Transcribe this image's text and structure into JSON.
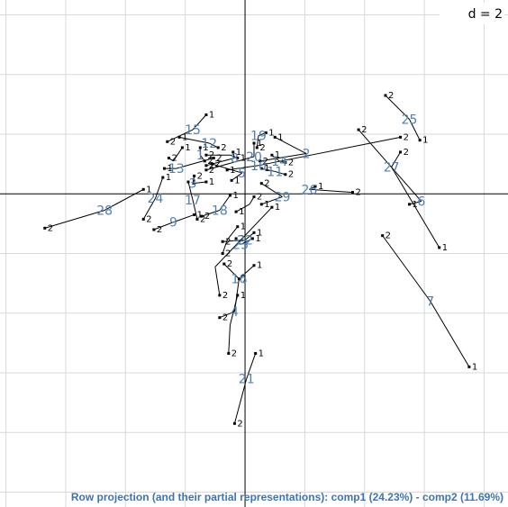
{
  "chart_data": {
    "type": "scatter",
    "grid_step": 2,
    "xlim": [
      -8.2,
      8.8
    ],
    "ylim": [
      -10.5,
      6.5
    ],
    "grid": true,
    "scale_label": "d = 2",
    "xlabel": "Row projection (and their partial representations): comp1 (24.23%) - comp2 (11.69%)",
    "rows": [
      {
        "label": "25",
        "center": [
          5.5,
          2.5
        ],
        "p1": [
          5.85,
          1.8
        ],
        "p2": [
          4.7,
          3.3
        ]
      },
      {
        "label": "27",
        "center": [
          4.9,
          0.9
        ],
        "p1": [
          6.5,
          -1.8
        ],
        "p2": [
          5.2,
          1.4
        ]
      },
      {
        "label": "6",
        "center": [
          5.9,
          -0.25
        ],
        "p1": [
          5.5,
          -0.35
        ],
        "p2": [
          3.8,
          2.15
        ]
      },
      {
        "label": "7",
        "center": [
          6.2,
          -3.6
        ],
        "p1": [
          7.5,
          -5.8
        ],
        "p2": [
          4.6,
          -1.4
        ]
      },
      {
        "label": "15",
        "center": [
          -1.75,
          2.15
        ],
        "p1": [
          -1.3,
          2.65
        ],
        "p2": [
          -2.6,
          1.75
        ]
      },
      {
        "label": "12",
        "center": [
          -1.2,
          1.7
        ],
        "p1": [
          -2.2,
          1.9
        ],
        "p2": [
          -0.9,
          1.55
        ]
      },
      {
        "label": "1",
        "center": [
          -1.5,
          1.3
        ],
        "p1": [
          -1.5,
          1.55
        ],
        "p2": [
          -1.35,
          1.1
        ]
      },
      {
        "label": "13",
        "center": [
          -2.3,
          0.85
        ],
        "p1": [
          -2.7,
          0.85
        ],
        "p2": [
          -1.05,
          1.2
        ]
      },
      {
        "label": "3",
        "center": [
          -1.75,
          0.35
        ],
        "p1": [
          -1.3,
          0.4
        ],
        "p2": [
          -1.7,
          0.6
        ]
      },
      {
        "label": "24",
        "center": [
          -3.0,
          -0.15
        ],
        "p1": [
          -2.75,
          0.55
        ],
        "p2": [
          -3.4,
          -0.85
        ]
      },
      {
        "label": "17",
        "center": [
          -1.75,
          -0.2
        ],
        "p1": [
          -1.9,
          0.4
        ],
        "p2": [
          -1.6,
          -0.85
        ]
      },
      {
        "label": "28",
        "center": [
          -4.7,
          -0.55
        ],
        "p1": [
          -3.4,
          0.15
        ],
        "p2": [
          -6.7,
          -1.15
        ]
      },
      {
        "label": "9",
        "center": [
          -2.4,
          -0.95
        ],
        "p1": [
          -1.7,
          -0.7
        ],
        "p2": [
          -3.05,
          -1.2
        ]
      },
      {
        "label": "18",
        "center": [
          -0.85,
          -0.55
        ],
        "p1": [
          -0.5,
          -0.05
        ],
        "p2": [
          -1.45,
          -0.75
        ]
      },
      {
        "label": "19",
        "center": [
          0.45,
          1.95
        ],
        "p1": [
          0.7,
          2.05
        ],
        "p2": [
          0.4,
          1.55
        ]
      },
      {
        "label": "2",
        "center": [
          2.05,
          1.35
        ],
        "p1": [
          1.0,
          1.9
        ],
        "p2": [
          0.5,
          1.1
        ]
      },
      {
        "label": "8",
        "center": [
          -0.35,
          1.2
        ],
        "p1": [
          -0.4,
          1.4
        ],
        "p2": [
          -1.3,
          0.95
        ]
      },
      {
        "label": "20",
        "center": [
          0.3,
          1.25
        ],
        "p1": [
          0.3,
          1.7
        ],
        "p2": [
          -1.3,
          0.8
        ]
      },
      {
        "label": "10",
        "center": [
          0.45,
          0.95
        ],
        "p1": [
          -0.6,
          0.8
        ],
        "p2": [
          5.2,
          1.9
        ]
      },
      {
        "label": "14",
        "center": [
          1.15,
          1.1
        ],
        "p1": [
          0.9,
          1.3
        ],
        "p2": [
          1.35,
          1.05
        ]
      },
      {
        "label": "11",
        "center": [
          1.0,
          0.75
        ],
        "p1": [
          0.55,
          0.85
        ],
        "p2": [
          1.35,
          0.65
        ]
      },
      {
        "label": "5",
        "center": [
          -0.1,
          0.7
        ],
        "p1": [
          -0.45,
          0.45
        ],
        "p2": [
          -1.1,
          1.0
        ]
      },
      {
        "label": "26",
        "center": [
          2.15,
          0.15
        ],
        "p1": [
          2.35,
          0.25
        ],
        "p2": [
          3.6,
          0.05
        ]
      },
      {
        "label": "29",
        "center": [
          1.25,
          -0.1
        ],
        "p1": [
          0.55,
          -0.35
        ],
        "p2": [
          0.55,
          0.35
        ]
      },
      {
        "label": "22",
        "center": [
          0.0,
          -1.55
        ],
        "p1": [
          0.3,
          -1.3
        ],
        "p2": [
          -0.75,
          -1.6
        ]
      },
      {
        "label": "23",
        "center": [
          -0.15,
          -1.7
        ],
        "p1": [
          0.25,
          -1.5
        ],
        "p2": [
          -0.3,
          -1.5
        ]
      },
      {
        "label": "16",
        "center": [
          -0.2,
          -2.85
        ],
        "p1": [
          0.3,
          -2.4
        ],
        "p2": [
          -0.7,
          -2.35
        ]
      },
      {
        "label": "4",
        "center": [
          -0.35,
          -3.95
        ],
        "p1": [
          -0.2,
          -2.85
        ],
        "p2": [
          -0.85,
          -4.15
        ]
      },
      {
        "label": "21",
        "center": [
          0.05,
          -6.2
        ],
        "p1": [
          0.35,
          -5.35
        ],
        "p2": [
          -0.35,
          -7.7
        ]
      },
      {
        "label": "",
        "center": [
          -1.0,
          -2.45
        ],
        "p1": [
          0.9,
          -0.45
        ],
        "p2": [
          -0.85,
          -3.4
        ]
      },
      {
        "label": "",
        "center": [
          -0.6,
          -1.55
        ],
        "p1": [
          -0.25,
          -1.1
        ],
        "p2": [
          -0.75,
          -2.0
        ]
      },
      {
        "label": "",
        "center": [
          -0.5,
          -4.4
        ],
        "p1": [
          -0.25,
          -3.4
        ],
        "p2": [
          -0.55,
          -5.35
        ]
      },
      {
        "label": "",
        "center": [
          -2.4,
          1.1
        ],
        "p1": [
          -2.1,
          1.55
        ],
        "p2": [
          -2.55,
          1.2
        ]
      },
      {
        "label": "",
        "center": [
          -0.5,
          1.3
        ],
        "p1": [
          -0.25,
          1.2
        ],
        "p2": [
          -1.3,
          1.3
        ]
      },
      {
        "label": "",
        "center": [
          0.15,
          -0.35
        ],
        "p1": [
          -0.3,
          -0.6
        ],
        "p2": [
          0.3,
          -0.1
        ]
      }
    ]
  }
}
